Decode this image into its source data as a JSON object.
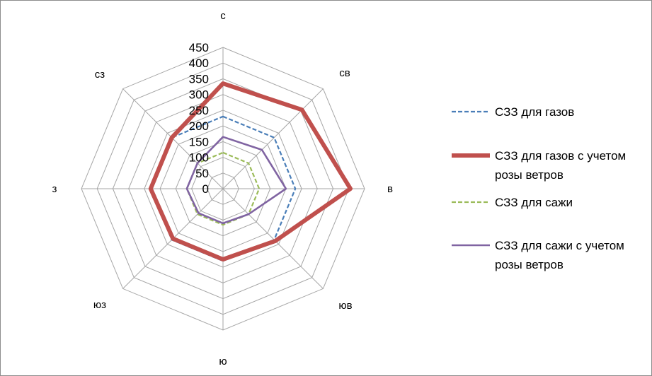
{
  "chart_data": {
    "type": "radar",
    "title": "",
    "categories": [
      "с",
      "св",
      "в",
      "юв",
      "ю",
      "юз",
      "з",
      "сз"
    ],
    "rlim": [
      0,
      450
    ],
    "ticks": [
      0,
      50,
      100,
      150,
      200,
      250,
      300,
      350,
      400,
      450
    ],
    "grid": true,
    "legend_position": "right",
    "series": [
      {
        "name": "СЗЗ для газов",
        "values": [
          230,
          230,
          230,
          230,
          230,
          230,
          230,
          230
        ],
        "color": "#4a7eb8",
        "style": "dashed"
      },
      {
        "name": "СЗЗ для газов с учетом розы ветров",
        "values": [
          335,
          355,
          405,
          235,
          225,
          225,
          230,
          230
        ],
        "color": "#c0504d",
        "style": "solid-thick"
      },
      {
        "name": "СЗЗ для сажи",
        "values": [
          115,
          115,
          115,
          115,
          115,
          115,
          115,
          115
        ],
        "color": "#9bbb59",
        "style": "dashed"
      },
      {
        "name": "СЗЗ для сажи с учетом розы ветров",
        "values": [
          165,
          175,
          200,
          115,
          110,
          110,
          115,
          115
        ],
        "color": "#8064a2",
        "style": "solid"
      }
    ]
  }
}
